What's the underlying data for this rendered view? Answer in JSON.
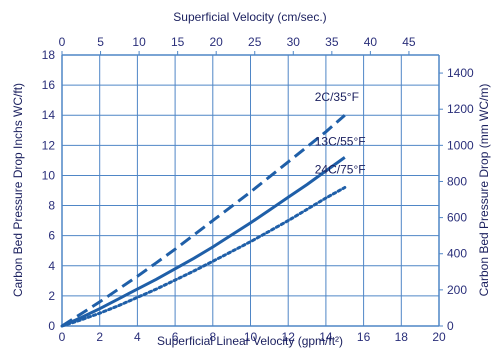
{
  "chart_data": {
    "type": "line",
    "xlabel": "Superficial Linear Velocity (gpm/ft²)",
    "ylabel": "Carbon Bed Pressure Drop Inchs WC/ft)",
    "x2label": "Superficial Velocity (cm/sec.)",
    "y2label": "Carbon Bed Pressure Drop (mm WC/m)",
    "xlim": [
      0,
      20
    ],
    "ylim": [
      0,
      18
    ],
    "x2lim": [
      0,
      48.9
    ],
    "y2lim": [
      0,
      1500
    ],
    "xticks": [
      "0",
      "2",
      "4",
      "6",
      "8",
      "10",
      "12",
      "14",
      "16",
      "18",
      "20"
    ],
    "yticks": [
      "0",
      "2",
      "4",
      "6",
      "8",
      "10",
      "12",
      "14",
      "16",
      "18"
    ],
    "x2ticks": [
      "0",
      "5",
      "10",
      "15",
      "20",
      "25",
      "30",
      "35",
      "40",
      "45"
    ],
    "y2ticks": [
      "0",
      "200",
      "400",
      "600",
      "800",
      "1000",
      "1200",
      "1400"
    ],
    "grid": true,
    "series": [
      {
        "name": "2C/35°F",
        "style": "dashed",
        "x": [
          0,
          1,
          2,
          3,
          4,
          5,
          6,
          7,
          8,
          9,
          10,
          11,
          12,
          13,
          14,
          15
        ],
        "y": [
          0,
          0.8,
          1.6,
          2.45,
          3.3,
          4.2,
          5.1,
          6.05,
          7.0,
          7.95,
          8.9,
          9.9,
          10.9,
          11.9,
          12.9,
          14.0
        ]
      },
      {
        "name": "13C/55°F",
        "style": "solid",
        "x": [
          0,
          1,
          2,
          3,
          4,
          5,
          6,
          7,
          8,
          9,
          10,
          11,
          12,
          13,
          14,
          15
        ],
        "y": [
          0,
          0.55,
          1.15,
          1.8,
          2.45,
          3.1,
          3.8,
          4.5,
          5.25,
          6.05,
          6.85,
          7.7,
          8.55,
          9.4,
          10.3,
          11.2
        ]
      },
      {
        "name": "24C/75°F",
        "style": "dotted",
        "x": [
          0,
          1,
          2,
          3,
          4,
          5,
          6,
          7,
          8,
          9,
          10,
          11,
          12,
          13,
          14,
          15
        ],
        "y": [
          0,
          0.4,
          0.85,
          1.35,
          1.9,
          2.45,
          3.05,
          3.65,
          4.3,
          4.95,
          5.6,
          6.3,
          7.0,
          7.75,
          8.5,
          9.2
        ]
      }
    ],
    "colors": {
      "line": "#1f5fa8",
      "grid": "#4f86c6",
      "text": "#2a2f7a"
    }
  }
}
